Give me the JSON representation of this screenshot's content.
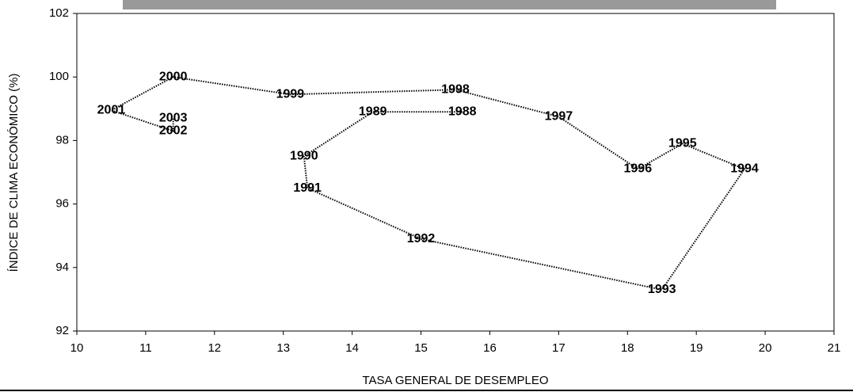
{
  "chart_data": {
    "type": "line",
    "xlabel": "TASA GENERAL DE DESEMPLEO",
    "ylabel": "ÍNDICE DE CLIMA ECONÓMICO (%)",
    "x": [
      15.6,
      14.3,
      13.3,
      13.35,
      15.0,
      18.5,
      19.7,
      18.8,
      18.15,
      17.0,
      15.5,
      13.1,
      11.4,
      10.5,
      11.4,
      11.4
    ],
    "values": [
      98.9,
      98.9,
      97.5,
      96.5,
      94.9,
      93.3,
      97.1,
      97.9,
      97.1,
      98.75,
      99.6,
      99.45,
      100.0,
      98.95,
      98.3,
      98.7
    ],
    "point_labels": [
      "1988",
      "1989",
      "1990",
      "1991",
      "1992",
      "1993",
      "1994",
      "1995",
      "1996",
      "1997",
      "1998",
      "1999",
      "2000",
      "2001",
      "2002",
      "2003"
    ],
    "color": "#000000",
    "xlim": [
      10,
      21
    ],
    "xticks": [
      10,
      11,
      12,
      13,
      14,
      15,
      16,
      17,
      18,
      19,
      20,
      21
    ],
    "ylim": [
      92,
      102
    ],
    "yticks": [
      92,
      94,
      96,
      98,
      100,
      102
    ]
  }
}
